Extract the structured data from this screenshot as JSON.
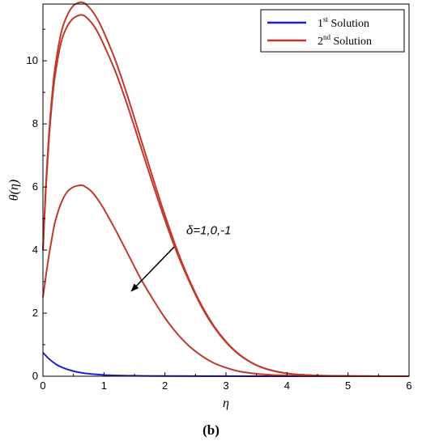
{
  "chart_data": {
    "type": "line",
    "xlabel": "η",
    "ylabel": "θ(η)",
    "xlim": [
      0,
      6
    ],
    "ylim": [
      0,
      11.8
    ],
    "xticks": [
      0,
      1,
      2,
      3,
      4,
      5,
      6
    ],
    "yticks": [
      0,
      2,
      4,
      6,
      8,
      10
    ],
    "grid": false,
    "legend": {
      "placement": "top-right",
      "entries": [
        {
          "label": "1",
          "sup": "st",
          "rest": " Solution",
          "color": "#1f1fd6"
        },
        {
          "label": "2",
          "sup": "nd",
          "rest": " Solution",
          "color": "#c0392b"
        }
      ]
    },
    "series": [
      {
        "group": "1st Solution",
        "color": "#1f1fd6",
        "x": [
          0,
          0.1,
          0.2,
          0.3,
          0.5,
          0.7,
          1.0,
          1.5,
          2.0,
          3.0,
          4.0,
          5.0,
          6.0
        ],
        "y": [
          0.75,
          0.55,
          0.4,
          0.29,
          0.16,
          0.09,
          0.04,
          0.015,
          0.006,
          0.002,
          0.001,
          0.0005,
          0
        ]
      },
      {
        "group": "2nd Solution",
        "color": "#c0392b",
        "x": [
          0,
          0.05,
          0.1,
          0.15,
          0.2,
          0.3,
          0.4,
          0.5,
          0.6,
          0.65,
          0.7,
          0.8,
          0.9,
          1.0,
          1.2,
          1.4,
          1.6,
          1.8,
          2.0,
          2.2,
          2.4,
          2.6,
          2.8,
          3.0,
          3.2,
          3.4,
          3.6,
          3.8,
          4.0,
          4.2,
          4.4,
          4.6,
          5.0,
          5.5,
          6.0
        ],
        "y": [
          4.0,
          6.1,
          7.7,
          8.9,
          9.8,
          10.9,
          11.45,
          11.75,
          11.85,
          11.85,
          11.8,
          11.6,
          11.3,
          10.9,
          9.95,
          8.8,
          7.55,
          6.3,
          5.1,
          4.0,
          3.05,
          2.25,
          1.6,
          1.1,
          0.72,
          0.45,
          0.27,
          0.16,
          0.09,
          0.05,
          0.03,
          0.015,
          0.005,
          0.001,
          0
        ]
      },
      {
        "group": "2nd Solution",
        "color": "#c0392b",
        "x": [
          0,
          0.05,
          0.1,
          0.15,
          0.2,
          0.3,
          0.4,
          0.5,
          0.6,
          0.65,
          0.7,
          0.8,
          0.9,
          1.0,
          1.2,
          1.4,
          1.6,
          1.8,
          2.0,
          2.2,
          2.4,
          2.6,
          2.8,
          3.0,
          3.2,
          3.4,
          3.6,
          3.8,
          4.0,
          4.2,
          4.4,
          4.6,
          5.0,
          5.5,
          6.0
        ],
        "y": [
          4.0,
          6.0,
          7.55,
          8.7,
          9.55,
          10.6,
          11.1,
          11.35,
          11.45,
          11.45,
          11.4,
          11.2,
          10.9,
          10.5,
          9.6,
          8.5,
          7.3,
          6.1,
          4.95,
          3.9,
          3.0,
          2.2,
          1.57,
          1.08,
          0.71,
          0.45,
          0.27,
          0.16,
          0.09,
          0.05,
          0.03,
          0.015,
          0.005,
          0.001,
          0
        ]
      },
      {
        "group": "2nd Solution",
        "color": "#c0392b",
        "x": [
          0,
          0.05,
          0.1,
          0.15,
          0.2,
          0.3,
          0.4,
          0.5,
          0.6,
          0.65,
          0.7,
          0.8,
          0.9,
          1.0,
          1.2,
          1.4,
          1.6,
          1.8,
          2.0,
          2.2,
          2.4,
          2.6,
          2.8,
          3.0,
          3.2,
          3.4,
          3.6,
          3.8,
          4.0,
          4.2,
          4.4,
          5.0,
          6.0
        ],
        "y": [
          2.5,
          3.2,
          3.85,
          4.4,
          4.9,
          5.5,
          5.85,
          6.0,
          6.05,
          6.05,
          6.0,
          5.85,
          5.6,
          5.3,
          4.6,
          3.85,
          3.1,
          2.45,
          1.85,
          1.35,
          0.95,
          0.65,
          0.42,
          0.27,
          0.16,
          0.1,
          0.06,
          0.035,
          0.02,
          0.01,
          0.005,
          0.001,
          0
        ]
      }
    ],
    "annotations": [
      {
        "text": "δ=1,0,-1",
        "x": 2.35,
        "y": 4.5,
        "arrow_from": [
          2.15,
          4.1
        ],
        "arrow_to": [
          1.45,
          2.7
        ]
      }
    ]
  },
  "panel_label": "(b)"
}
